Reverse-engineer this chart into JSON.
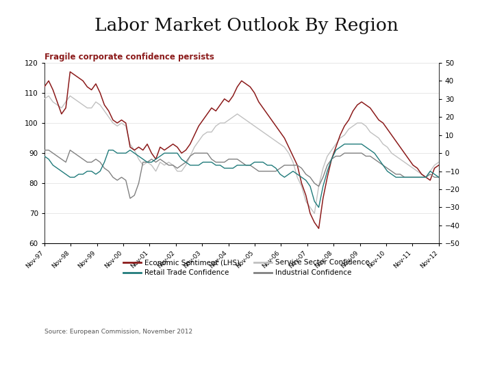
{
  "title": "Labor Market Outlook By Region",
  "subtitle": "Fragile corporate confidence persists",
  "source": "Source: European Commission, November 2012",
  "x_labels": [
    "Nov-97",
    "Nov-98",
    "Nov-99",
    "Nov-00",
    "Nov-01",
    "Nov-02",
    "Nov-03",
    "Nov-04",
    "Nov-05",
    "Nov-06",
    "Nov-07",
    "Nov-08",
    "Nov-09",
    "Nov-10",
    "Nov-11",
    "Nov-12"
  ],
  "lhs_ylim": [
    60,
    120
  ],
  "lhs_yticks": [
    60,
    70,
    80,
    90,
    100,
    110,
    120
  ],
  "rhs_ylim": [
    -50,
    50
  ],
  "rhs_yticks": [
    50,
    40,
    30,
    20,
    10,
    0,
    -10,
    -20,
    -30,
    -40,
    -50
  ],
  "colors": {
    "economic_sentiment": "#8B1A1A",
    "retail_trade": "#1F7A7A",
    "service_sector": "#C0C0C0",
    "industrial": "#808080",
    "title_line": "#7EC8D3",
    "subtitle": "#8B1A1A",
    "background": "#FFFFFF"
  },
  "economic_sentiment": [
    112,
    114,
    111,
    107,
    103,
    105,
    117,
    116,
    115,
    114,
    112,
    111,
    113,
    110,
    106,
    104,
    101,
    100,
    101,
    100,
    92,
    91,
    92,
    91,
    93,
    90,
    88,
    92,
    91,
    92,
    93,
    92,
    90,
    91,
    93,
    96,
    99,
    101,
    103,
    105,
    104,
    106,
    108,
    107,
    109,
    112,
    114,
    113,
    112,
    110,
    107,
    105,
    103,
    101,
    99,
    97,
    95,
    92,
    89,
    86,
    80,
    76,
    70,
    67,
    65,
    75,
    82,
    88,
    92,
    96,
    99,
    101,
    104,
    106,
    107,
    106,
    105,
    103,
    101,
    100,
    98,
    96,
    94,
    92,
    90,
    88,
    86,
    85,
    83,
    82,
    81,
    85,
    86
  ],
  "service_sector": [
    108,
    109,
    107,
    106,
    105,
    107,
    109,
    108,
    107,
    106,
    105,
    105,
    107,
    106,
    104,
    102,
    100,
    99,
    100,
    99,
    93,
    91,
    88,
    86,
    87,
    86,
    84,
    87,
    86,
    87,
    86,
    84,
    84,
    86,
    89,
    92,
    94,
    96,
    97,
    97,
    99,
    100,
    100,
    101,
    102,
    103,
    102,
    101,
    100,
    99,
    98,
    97,
    96,
    95,
    94,
    93,
    92,
    90,
    87,
    82,
    79,
    74,
    72,
    70,
    79,
    85,
    89,
    91,
    93,
    95,
    96,
    98,
    99,
    100,
    100,
    99,
    97,
    96,
    95,
    93,
    92,
    90,
    89,
    88,
    87,
    86,
    85,
    84,
    83,
    82,
    84,
    86,
    87
  ],
  "retail_trade": [
    89,
    88,
    86,
    85,
    84,
    83,
    82,
    82,
    83,
    83,
    84,
    84,
    83,
    84,
    87,
    91,
    91,
    90,
    90,
    90,
    91,
    90,
    89,
    88,
    87,
    87,
    88,
    89,
    90,
    90,
    90,
    90,
    88,
    87,
    86,
    86,
    86,
    87,
    87,
    87,
    86,
    86,
    85,
    85,
    85,
    86,
    86,
    86,
    86,
    87,
    87,
    87,
    86,
    86,
    85,
    83,
    82,
    83,
    84,
    83,
    82,
    81,
    79,
    74,
    72,
    79,
    84,
    88,
    91,
    92,
    93,
    93,
    93,
    93,
    93,
    92,
    91,
    90,
    88,
    86,
    84,
    83,
    82,
    82,
    82,
    82,
    82,
    82,
    82,
    82,
    84,
    83,
    82
  ],
  "industrial": [
    91,
    91,
    90,
    89,
    88,
    87,
    91,
    90,
    89,
    88,
    87,
    87,
    88,
    87,
    85,
    84,
    82,
    81,
    82,
    81,
    75,
    76,
    80,
    87,
    87,
    88,
    87,
    88,
    87,
    86,
    86,
    85,
    86,
    87,
    89,
    90,
    90,
    90,
    90,
    88,
    87,
    87,
    87,
    88,
    88,
    88,
    87,
    86,
    86,
    85,
    84,
    84,
    84,
    84,
    84,
    85,
    86,
    86,
    86,
    86,
    85,
    83,
    82,
    80,
    79,
    82,
    86,
    88,
    89,
    89,
    90,
    90,
    90,
    90,
    90,
    89,
    89,
    88,
    87,
    86,
    85,
    84,
    83,
    83,
    82,
    82,
    82,
    82,
    82,
    82,
    83,
    82,
    82
  ]
}
